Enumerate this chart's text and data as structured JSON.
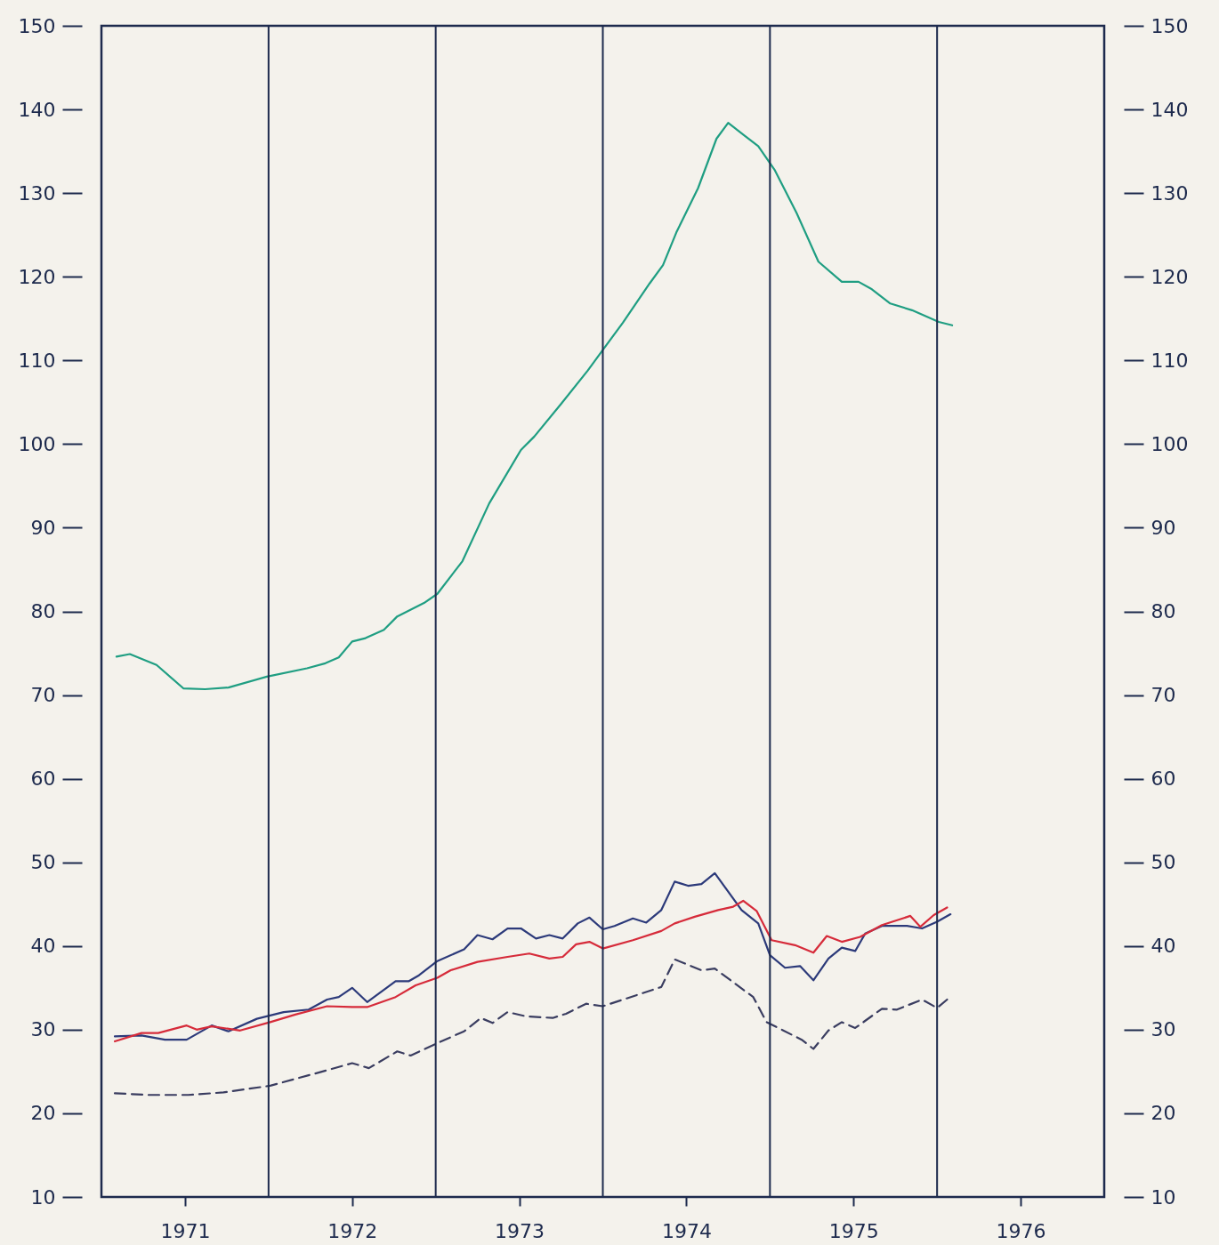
{
  "chart_data": {
    "type": "line",
    "xlim": [
      1971,
      1977
    ],
    "xticks": [
      {
        "value": 1971.5,
        "label": "1971"
      },
      {
        "value": 1972.5,
        "label": "1972"
      },
      {
        "value": 1973.5,
        "label": "1973"
      },
      {
        "value": 1974.5,
        "label": "1974"
      },
      {
        "value": 1975.5,
        "label": "1975"
      },
      {
        "value": 1976.5,
        "label": "1976"
      }
    ],
    "ylim": [
      10,
      150
    ],
    "yticks": [
      10,
      20,
      30,
      40,
      50,
      60,
      70,
      80,
      90,
      100,
      110,
      120,
      130,
      140,
      150
    ],
    "y2lim": [
      10,
      150
    ],
    "y2ticks": [
      10,
      20,
      30,
      40,
      50,
      60,
      70,
      80,
      90,
      100,
      110,
      120,
      130,
      140,
      150
    ],
    "grid": false,
    "marker": "none",
    "ref_lines": [
      {
        "axis": "x",
        "value": 1972,
        "label": null,
        "color": "#1d2a4d"
      },
      {
        "axis": "x",
        "value": 1973,
        "label": null,
        "color": "#1d2a4d"
      },
      {
        "axis": "x",
        "value": 1974,
        "label": null,
        "color": "#1d2a4d"
      },
      {
        "axis": "x",
        "value": 1975,
        "label": null,
        "color": "#1d2a4d"
      },
      {
        "axis": "x",
        "value": 1976,
        "label": null,
        "color": "#1d2a4d"
      }
    ],
    "series": [
      {
        "color": "#1f9e82",
        "line_style": "solid",
        "x": [
          1971.09,
          1971.17,
          1971.33,
          1971.49,
          1971.62,
          1971.76,
          1971.99,
          1972.23,
          1972.34,
          1972.42,
          1972.5,
          1972.58,
          1972.69,
          1972.77,
          1972.93,
          1973.01,
          1973.16,
          1973.32,
          1973.51,
          1973.59,
          1973.75,
          1973.91,
          1974.02,
          1974.12,
          1974.28,
          1974.36,
          1974.44,
          1974.57,
          1974.68,
          1974.75,
          1974.84,
          1974.93,
          1975.03,
          1975.16,
          1975.29,
          1975.43,
          1975.53,
          1975.61,
          1975.72,
          1975.85,
          1976.01,
          1976.09
        ],
        "values": [
          74.6,
          74.9,
          73.6,
          70.8,
          70.7,
          70.9,
          72.2,
          73.2,
          73.8,
          74.5,
          76.4,
          76.8,
          77.8,
          79.4,
          81.0,
          82.1,
          86.0,
          92.9,
          99.3,
          100.9,
          104.8,
          108.8,
          111.8,
          114.5,
          119.2,
          121.4,
          125.3,
          130.6,
          136.5,
          138.4,
          137.0,
          135.6,
          132.7,
          127.6,
          121.8,
          119.4,
          119.4,
          118.5,
          116.8,
          116.0,
          114.6,
          114.2
        ]
      },
      {
        "color": "#2c3a7a",
        "line_style": "solid",
        "x": [
          1971.08,
          1971.24,
          1971.38,
          1971.51,
          1971.66,
          1971.76,
          1971.93,
          1972.09,
          1972.24,
          1972.35,
          1972.42,
          1972.5,
          1972.59,
          1972.76,
          1972.84,
          1972.9,
          1973.01,
          1973.17,
          1973.25,
          1973.34,
          1973.43,
          1973.51,
          1973.6,
          1973.68,
          1973.76,
          1973.85,
          1973.92,
          1974,
          1974.07,
          1974.18,
          1974.26,
          1974.35,
          1974.43,
          1974.51,
          1974.59,
          1974.67,
          1974.83,
          1974.93,
          1975,
          1975.09,
          1975.18,
          1975.26,
          1975.35,
          1975.43,
          1975.51,
          1975.57,
          1975.67,
          1975.82,
          1975.91,
          1976,
          1976.08
        ],
        "values": [
          29.2,
          29.3,
          28.8,
          28.8,
          30.5,
          29.8,
          31.3,
          32.1,
          32.4,
          33.6,
          33.9,
          35.0,
          33.3,
          35.8,
          35.8,
          36.5,
          38.2,
          39.6,
          41.3,
          40.8,
          42.1,
          42.1,
          40.9,
          41.3,
          40.9,
          42.7,
          43.4,
          42.0,
          42.4,
          43.3,
          42.8,
          44.3,
          47.7,
          47.2,
          47.4,
          48.7,
          44.3,
          42.7,
          38.9,
          37.4,
          37.6,
          35.9,
          38.5,
          39.8,
          39.4,
          41.5,
          42.4,
          42.4,
          42.1,
          42.9,
          43.8
        ]
      },
      {
        "color": "#d62b3a",
        "line_style": "solid",
        "x": [
          1971.08,
          1971.24,
          1971.34,
          1971.51,
          1971.57,
          1971.66,
          1971.83,
          1972.01,
          1972.16,
          1972.35,
          1972.5,
          1972.59,
          1972.76,
          1972.88,
          1973.01,
          1973.09,
          1973.25,
          1973.43,
          1973.56,
          1973.68,
          1973.76,
          1973.84,
          1973.92,
          1974,
          1974.18,
          1974.35,
          1974.43,
          1974.55,
          1974.69,
          1974.78,
          1974.84,
          1974.92,
          1975.01,
          1975.15,
          1975.26,
          1975.34,
          1975.43,
          1975.54,
          1975.67,
          1975.84,
          1975.9,
          1975.98,
          1976.06
        ],
        "values": [
          28.6,
          29.6,
          29.6,
          30.5,
          30.0,
          30.4,
          29.9,
          30.9,
          31.8,
          32.8,
          32.7,
          32.7,
          33.9,
          35.3,
          36.2,
          37.1,
          38.1,
          38.7,
          39.1,
          38.5,
          38.7,
          40.2,
          40.5,
          39.7,
          40.7,
          41.8,
          42.7,
          43.5,
          44.3,
          44.7,
          45.4,
          44.2,
          40.7,
          40.1,
          39.2,
          41.2,
          40.5,
          41.1,
          42.5,
          43.6,
          42.3,
          43.7,
          44.6
        ]
      },
      {
        "color": "#3a3d60",
        "line_style": "dashed",
        "x": [
          1971.08,
          1971.28,
          1971.52,
          1971.73,
          1972.01,
          1972.36,
          1972.5,
          1972.6,
          1972.77,
          1972.85,
          1973.01,
          1973.17,
          1973.27,
          1973.34,
          1973.43,
          1973.54,
          1973.7,
          1973.78,
          1973.9,
          1974,
          1974.35,
          1974.43,
          1974.59,
          1974.67,
          1974.9,
          1974.98,
          1975.19,
          1975.26,
          1975.35,
          1975.43,
          1975.51,
          1975.67,
          1975.76,
          1975.91,
          1976,
          1976.06
        ],
        "values": [
          22.4,
          22.2,
          22.2,
          22.5,
          23.3,
          25.2,
          26.0,
          25.4,
          27.4,
          26.9,
          28.4,
          29.8,
          31.4,
          30.8,
          32.1,
          31.6,
          31.4,
          31.9,
          33.1,
          32.8,
          35.1,
          38.4,
          37.1,
          37.3,
          33.9,
          30.9,
          28.8,
          27.7,
          29.9,
          30.9,
          30.2,
          32.5,
          32.4,
          33.6,
          32.6,
          33.6
        ]
      }
    ]
  }
}
